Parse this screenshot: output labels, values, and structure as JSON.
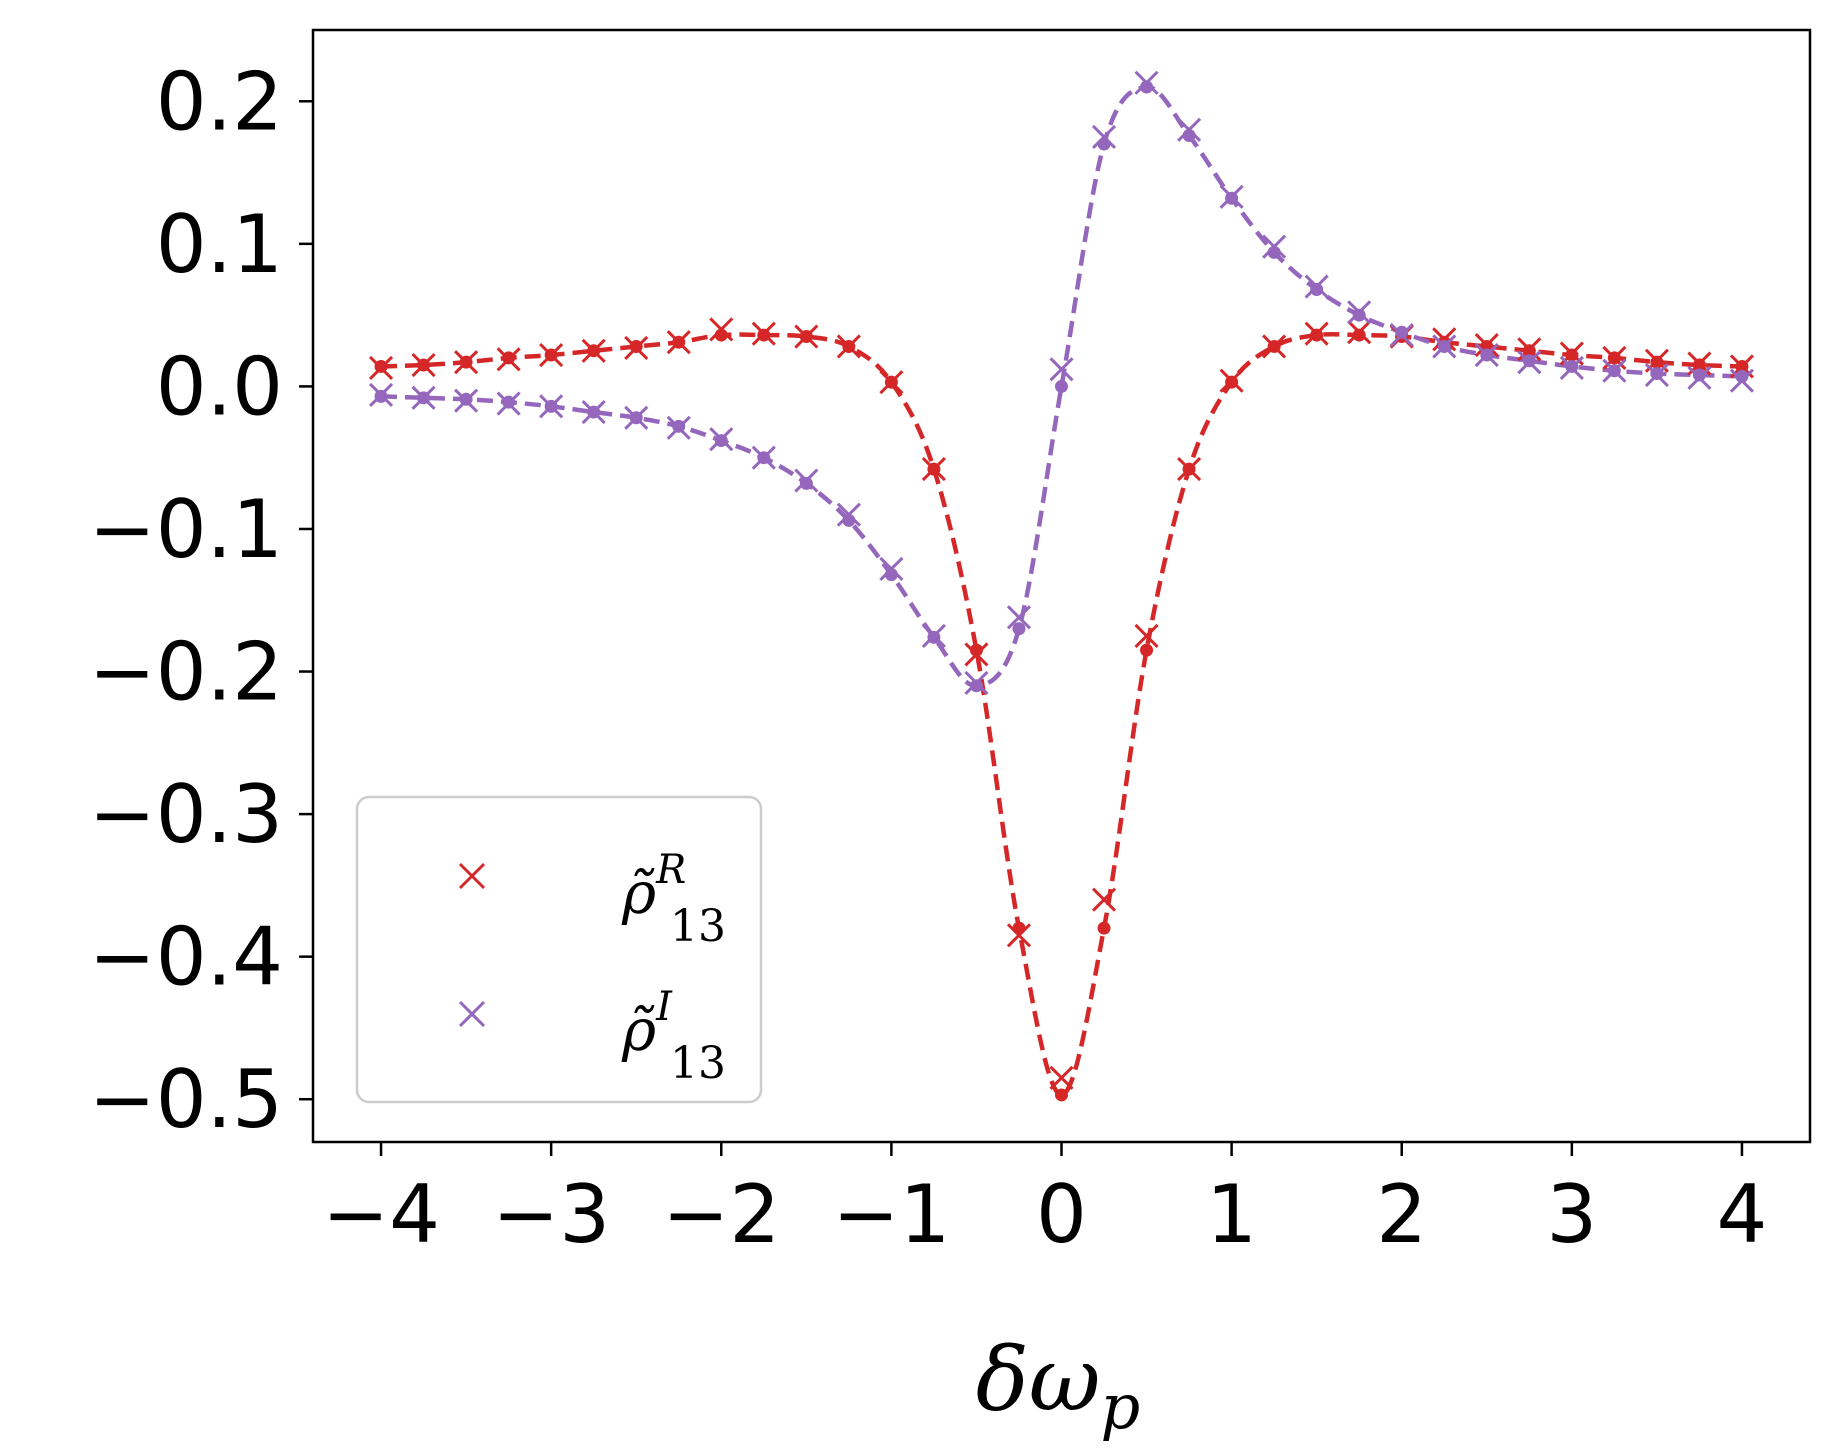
{
  "chart_data": {
    "type": "line",
    "title": "",
    "xlabel": "δω_p",
    "xlabel_parts": {
      "base": "δω",
      "sub": "p"
    },
    "ylabel": "",
    "xlim": [
      -4.4,
      4.4
    ],
    "ylim": [
      -0.53,
      0.25
    ],
    "xticks": [
      -4,
      -3,
      -2,
      -1,
      0,
      1,
      2,
      3,
      4
    ],
    "xtick_labels": [
      "−4",
      "−3",
      "−2",
      "−1",
      "0",
      "1",
      "2",
      "3",
      "4"
    ],
    "yticks": [
      0.2,
      0.1,
      0.0,
      -0.1,
      -0.2,
      -0.3,
      -0.4,
      -0.5
    ],
    "ytick_labels": [
      "0.2",
      "0.1",
      "0.0",
      "−0.1",
      "−0.2",
      "−0.3",
      "−0.4",
      "−0.5"
    ],
    "legend_position": "lower-left",
    "x": [
      -4,
      -3.75,
      -3.5,
      -3.25,
      -3,
      -2.75,
      -2.5,
      -2.25,
      -2,
      -1.75,
      -1.5,
      -1.25,
      -1,
      -0.75,
      -0.5,
      -0.25,
      0,
      0.25,
      0.5,
      0.75,
      1,
      1.25,
      1.5,
      1.75,
      2,
      2.25,
      2.5,
      2.75,
      3,
      3.25,
      3.5,
      3.75,
      4
    ],
    "series": [
      {
        "name": "rho_R",
        "legend": {
          "base": "ρ̃",
          "sup": "R",
          "sub": "13"
        },
        "color": "#d62728",
        "dots": [
          0.014,
          0.015,
          0.017,
          0.02,
          0.022,
          0.025,
          0.028,
          0.031,
          0.036,
          0.036,
          0.035,
          0.028,
          0.003,
          -0.058,
          -0.185,
          -0.38,
          -0.497,
          -0.38,
          -0.185,
          -0.058,
          0.003,
          0.028,
          0.036,
          0.036,
          0.035,
          0.031,
          0.028,
          0.025,
          0.022,
          0.02,
          0.017,
          0.015,
          0.014
        ],
        "crosses": [
          0.013,
          0.015,
          0.017,
          0.019,
          0.022,
          0.025,
          0.027,
          0.031,
          0.04,
          0.037,
          0.035,
          0.028,
          0.003,
          -0.058,
          -0.188,
          -0.385,
          -0.485,
          -0.36,
          -0.175,
          -0.058,
          0.004,
          0.028,
          0.037,
          0.038,
          0.035,
          0.033,
          0.029,
          0.026,
          0.023,
          0.02,
          0.018,
          0.016,
          0.014
        ]
      },
      {
        "name": "rho_I",
        "legend": {
          "base": "ρ̃",
          "sup": "I",
          "sub": "13"
        },
        "color": "#9467bd",
        "dots": [
          -0.007,
          -0.008,
          -0.009,
          -0.011,
          -0.014,
          -0.018,
          -0.022,
          -0.028,
          -0.038,
          -0.05,
          -0.068,
          -0.094,
          -0.132,
          -0.176,
          -0.21,
          -0.17,
          0.0,
          0.17,
          0.21,
          0.176,
          0.132,
          0.094,
          0.068,
          0.05,
          0.038,
          0.028,
          0.022,
          0.018,
          0.014,
          0.011,
          0.009,
          0.008,
          0.007
        ],
        "crosses": [
          -0.006,
          -0.008,
          -0.01,
          -0.012,
          -0.014,
          -0.018,
          -0.022,
          -0.029,
          -0.037,
          -0.05,
          -0.066,
          -0.09,
          -0.128,
          -0.175,
          -0.208,
          -0.162,
          0.012,
          0.175,
          0.213,
          0.18,
          0.133,
          0.098,
          0.07,
          0.052,
          0.036,
          0.028,
          0.022,
          0.017,
          0.013,
          0.011,
          0.008,
          0.006,
          0.004
        ]
      }
    ]
  }
}
